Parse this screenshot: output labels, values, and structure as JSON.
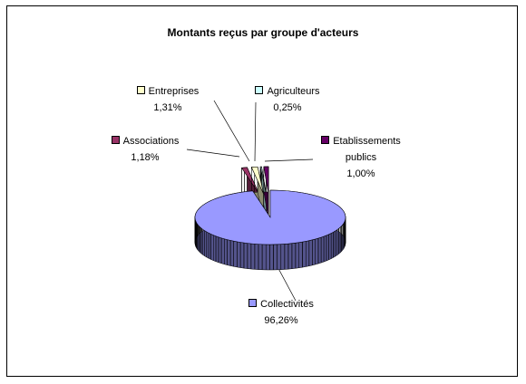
{
  "chart_data": {
    "type": "pie",
    "title": "Montants reçus par groupe d'acteurs",
    "categories": [
      "Collectivités",
      "Associations",
      "Entreprises",
      "Agriculteurs",
      "Etablissements publics"
    ],
    "values": [
      96.26,
      1.18,
      1.31,
      0.25,
      1.0
    ],
    "value_labels": [
      "96,26%",
      "1,18%",
      "1,31%",
      "0,25%",
      "1,00%"
    ],
    "colors": [
      "#9999ff",
      "#993366",
      "#ffffcc",
      "#ccffff",
      "#660066"
    ]
  }
}
